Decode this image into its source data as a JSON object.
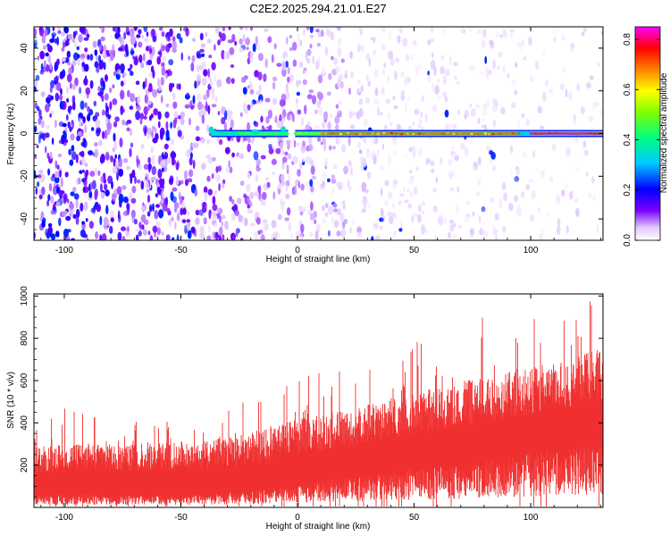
{
  "title": "C2E2.2025.294.21.01.E27",
  "colors": {
    "snr_fill": "#f03030",
    "frame": "#000000"
  },
  "chart_data": [
    {
      "type": "heatmap",
      "name": "spectrogram",
      "xlabel": "Height of straight line (km)",
      "ylabel": "Frequency (Hz)",
      "xlim": [
        -113,
        131
      ],
      "ylim": [
        -50,
        50
      ],
      "xticks": [
        -100,
        -50,
        0,
        50,
        100
      ],
      "yticks": [
        -40,
        -20,
        0,
        20,
        40
      ],
      "colorbar": {
        "label": "Normalized spectral amplitude",
        "range": [
          0.0,
          0.85
        ],
        "ticks": [
          "0.0",
          "0.2",
          "0.4",
          "0.6",
          "0.8"
        ],
        "colors": [
          "#ffffff",
          "#7a00ff",
          "#0000ff",
          "#00ffff",
          "#00ff00",
          "#ffff00",
          "#ff8000",
          "#ff0000",
          "#ff00ff"
        ]
      },
      "signal_band": {
        "frequency_hz": 0,
        "onset_km": -37,
        "gap_km": [
          -3,
          -1
        ],
        "segments": [
          {
            "from": -37,
            "to": -25,
            "amplitude": 0.35
          },
          {
            "from": -25,
            "to": -4,
            "amplitude": 0.45
          },
          {
            "from": -1,
            "to": 10,
            "amplitude": 0.5
          },
          {
            "from": 10,
            "to": 95,
            "amplitude": 0.7
          },
          {
            "from": 95,
            "to": 100,
            "amplitude": 0.3
          },
          {
            "from": 100,
            "to": 131,
            "amplitude": 0.82
          }
        ]
      },
      "noise_amplitude": {
        "left": 0.15,
        "right": 0.03
      }
    },
    {
      "type": "area",
      "name": "snr",
      "xlabel": "Height of straight line (km)",
      "ylabel": "SNR (10 * v/v)",
      "xlim": [
        -113,
        131
      ],
      "ylim": [
        0,
        1010
      ],
      "xticks": [
        -100,
        -50,
        0,
        50,
        100
      ],
      "yticks": [
        200,
        400,
        600,
        800,
        1000
      ],
      "envelope": {
        "x": [
          -113,
          -100,
          -80,
          -50,
          -30,
          -10,
          0,
          20,
          40,
          60,
          80,
          100,
          120,
          131
        ],
        "lower": [
          60,
          60,
          60,
          60,
          70,
          90,
          110,
          140,
          170,
          190,
          220,
          260,
          290,
          300
        ],
        "upper": [
          290,
          300,
          300,
          310,
          330,
          380,
          420,
          460,
          520,
          570,
          620,
          660,
          720,
          760
        ],
        "peak": [
          400,
          480,
          420,
          440,
          500,
          560,
          620,
          660,
          700,
          850,
          920,
          940,
          980,
          1000
        ]
      }
    }
  ]
}
